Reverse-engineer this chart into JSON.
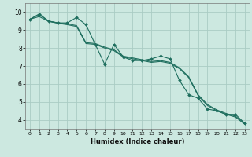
{
  "xlabel": "Humidex (Indice chaleur)",
  "bg_color": "#cce8e0",
  "plot_bg_color": "#cce8e0",
  "grid_color": "#aaccc4",
  "line_color": "#1e6e5e",
  "xlim": [
    -0.5,
    23.5
  ],
  "ylim": [
    3.5,
    10.5
  ],
  "yticks": [
    4,
    5,
    6,
    7,
    8,
    9,
    10
  ],
  "xticks": [
    0,
    1,
    2,
    3,
    4,
    5,
    6,
    7,
    8,
    9,
    10,
    11,
    12,
    13,
    14,
    15,
    16,
    17,
    18,
    19,
    20,
    21,
    22,
    23
  ],
  "line1_x": [
    0,
    1,
    2,
    3,
    4,
    5,
    6,
    7,
    8,
    9,
    10,
    11,
    12,
    13,
    14,
    15,
    16,
    17,
    18,
    19,
    20,
    21,
    22,
    23
  ],
  "line1_y": [
    9.6,
    9.9,
    9.5,
    9.4,
    9.4,
    9.7,
    9.3,
    8.2,
    7.1,
    8.2,
    7.5,
    7.3,
    7.3,
    7.4,
    7.55,
    7.4,
    6.2,
    5.4,
    5.2,
    4.6,
    4.5,
    4.3,
    4.3,
    3.8
  ],
  "line2_x": [
    0,
    1,
    2,
    3,
    4,
    5,
    6,
    7,
    8,
    9,
    10,
    11,
    12,
    13,
    14,
    15,
    16,
    17,
    18,
    19,
    20,
    21,
    22,
    23
  ],
  "line2_y": [
    9.6,
    9.85,
    9.5,
    9.4,
    9.35,
    9.25,
    8.3,
    8.25,
    8.05,
    7.9,
    7.55,
    7.45,
    7.35,
    7.25,
    7.3,
    7.2,
    6.9,
    6.4,
    5.4,
    4.85,
    4.55,
    4.35,
    4.2,
    3.8
  ],
  "line3_x": [
    0,
    1,
    2,
    3,
    4,
    5,
    6,
    7,
    8,
    9,
    10,
    11,
    12,
    13,
    14,
    15,
    16,
    17,
    18,
    19,
    20,
    21,
    22,
    23
  ],
  "line3_y": [
    9.6,
    9.75,
    9.48,
    9.38,
    9.3,
    9.2,
    8.25,
    8.2,
    8.0,
    7.85,
    7.5,
    7.4,
    7.3,
    7.2,
    7.25,
    7.15,
    6.85,
    6.35,
    5.35,
    4.8,
    4.5,
    4.3,
    4.15,
    3.75
  ]
}
